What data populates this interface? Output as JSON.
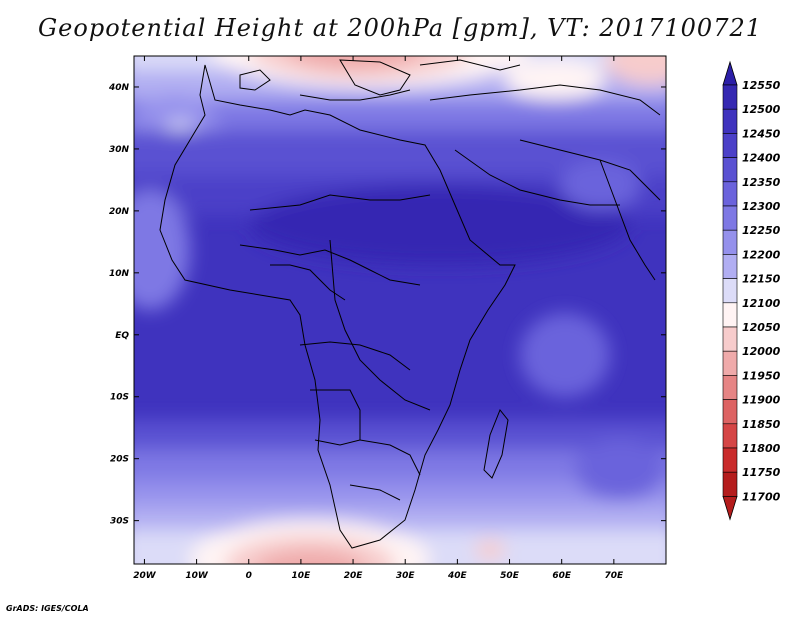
{
  "title": "Geopotential Height at 200hPa [gpm], VT: 2017100721",
  "credit": "GrADS: IGES/COLA",
  "map": {
    "lat_labels": [
      "40N",
      "30N",
      "20N",
      "10N",
      "EQ",
      "10S",
      "20S",
      "30S"
    ],
    "lat_values": [
      40,
      30,
      20,
      10,
      0,
      -10,
      -20,
      -30
    ],
    "lon_labels": [
      "20W",
      "10W",
      "0",
      "10E",
      "20E",
      "30E",
      "40E",
      "50E",
      "60E",
      "70E"
    ],
    "lon_values": [
      -20,
      -10,
      0,
      10,
      20,
      30,
      40,
      50,
      60,
      70
    ],
    "lon_range": [
      -22,
      80
    ],
    "lat_range": [
      -37,
      45
    ]
  },
  "colorbar": {
    "labels": [
      "12550",
      "12500",
      "12450",
      "12400",
      "12350",
      "12300",
      "12250",
      "12200",
      "12150",
      "12100",
      "12050",
      "12000",
      "11950",
      "11900",
      "11850",
      "11800",
      "11750",
      "11700"
    ],
    "colors": [
      "#2c1fa8",
      "#3528b2",
      "#3f33be",
      "#4b40c8",
      "#5a51d2",
      "#6b63dc",
      "#7e78e4",
      "#9591ec",
      "#b1aef2",
      "#dcdcf8",
      "#fff4f4",
      "#f7cccc",
      "#efaaaa",
      "#e68585",
      "#dd6363",
      "#d54545",
      "#c92b2b",
      "#b41c1c"
    ]
  }
}
